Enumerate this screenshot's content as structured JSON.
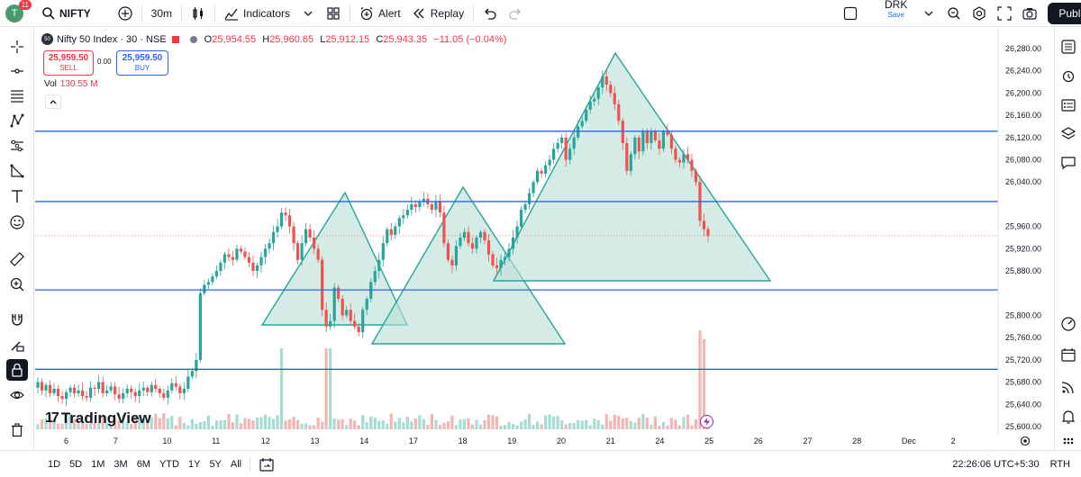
{
  "topbar": {
    "avatar_letter": "T",
    "notif_count": "11",
    "symbol": "NIFTY",
    "interval": "30m",
    "indicators_label": "Indicators",
    "alert_label": "Alert",
    "replay_label": "Replay",
    "layout_name": "DRK",
    "layout_save": "Save",
    "publish_label": "Publish"
  },
  "legend": {
    "logo": "50",
    "title": "Nifty 50 Index · 30 · NSE",
    "o_key": "O",
    "o_val": "25,954.55",
    "h_key": "H",
    "h_val": "25,960.65",
    "l_key": "L",
    "l_val": "25,912.15",
    "c_key": "C",
    "c_val": "25,943.35",
    "change": "−11.05 (−0.04%)"
  },
  "trade": {
    "sell_price": "25,959.50",
    "sell_label": "SELL",
    "spread": "0.00",
    "buy_price": "25,959.50",
    "buy_label": "BUY"
  },
  "volume": {
    "label": "Vol",
    "value": "130.55 M"
  },
  "brand": "TradingView",
  "price_axis": {
    "ticks": [
      "26,280.00",
      "26,240.00",
      "26,200.00",
      "26,160.00",
      "26,120.00",
      "26,080.00",
      "26,040.00",
      "25,960.00",
      "25,920.00",
      "25,880.00",
      "25,800.00",
      "25,760.00",
      "25,720.00",
      "25,680.00",
      "25,640.00",
      "25,600.00"
    ],
    "line_labels": [
      "26,131.35",
      "26,004.90",
      "25,845.85",
      "25,703.15"
    ],
    "last_price": "25,943.35",
    "vol_label": "130.55 M"
  },
  "time_axis": [
    "6",
    "7",
    "10",
    "11",
    "12",
    "13",
    "14",
    "17",
    "18",
    "19",
    "20",
    "21",
    "24",
    "25",
    "26",
    "27",
    "28",
    "Dec",
    "2"
  ],
  "bottombar": {
    "ranges": [
      "1D",
      "5D",
      "1M",
      "3M",
      "6M",
      "YTD",
      "1Y",
      "5Y",
      "All"
    ],
    "clock": "22:26:06 UTC+5:30",
    "session": "RTH"
  },
  "colors": {
    "up": "#26a69a",
    "down": "#ef5350",
    "hline": "#2962ff",
    "triangle_fill": "#b9e0d6",
    "triangle_stroke": "#26a69a"
  },
  "chart_data": {
    "type": "candlestick",
    "title": "Nifty 50 Index · 30 · NSE",
    "xlabel": "",
    "ylabel": "",
    "x": [
      "6",
      "7",
      "10",
      "11",
      "12",
      "13",
      "14",
      "17",
      "18",
      "19",
      "20",
      "21",
      "24",
      "25",
      "26",
      "27",
      "28",
      "Dec",
      "2"
    ],
    "ylim": [
      25590,
      26300
    ],
    "horizontal_lines": [
      26131.35,
      26004.9,
      25845.85,
      25703.15
    ],
    "last_price": 25943.35,
    "closes": [
      25680,
      25665,
      25675,
      25660,
      25668,
      25655,
      25650,
      25662,
      25670,
      25660,
      25665,
      25655,
      25652,
      25670,
      25668,
      25680,
      25660,
      25665,
      25672,
      25658,
      25650,
      25660,
      25668,
      25662,
      25655,
      25665,
      25670,
      25662,
      25675,
      25668,
      25660,
      25652,
      25665,
      25678,
      25672,
      25660,
      25668,
      25690,
      25700,
      25720,
      25840,
      25855,
      25860,
      25870,
      25880,
      25895,
      25910,
      25905,
      25900,
      25920,
      25915,
      25905,
      25895,
      25880,
      25890,
      25905,
      25920,
      25930,
      25950,
      25960,
      25985,
      25980,
      25960,
      25930,
      25900,
      25930,
      25955,
      25940,
      25920,
      25900,
      25810,
      25780,
      25790,
      25850,
      25830,
      25800,
      25810,
      25790,
      25780,
      25770,
      25810,
      25830,
      25860,
      25880,
      25900,
      25930,
      25955,
      25945,
      25960,
      25975,
      25980,
      25990,
      26000,
      25995,
      26005,
      26010,
      26000,
      25990,
      26005,
      25985,
      25930,
      25900,
      25890,
      25925,
      25940,
      25950,
      25930,
      25920,
      25940,
      25950,
      25935,
      25910,
      25890,
      25885,
      25900,
      25905,
      25920,
      25940,
      25960,
      25990,
      26000,
      26020,
      26040,
      26060,
      26055,
      26070,
      26080,
      26100,
      26110,
      26120,
      26080,
      26100,
      26120,
      26140,
      26150,
      26170,
      26185,
      26190,
      26210,
      26230,
      26215,
      26200,
      26180,
      26150,
      26110,
      26060,
      26090,
      26120,
      26095,
      26130,
      26110,
      26130,
      26115,
      26100,
      26130,
      26125,
      26100,
      26080,
      26075,
      26090,
      26080,
      26060,
      26040,
      25970,
      25955,
      25943
    ],
    "volume": {
      "last": "130.55 M"
    }
  },
  "drawings": {
    "triangles": 4
  }
}
